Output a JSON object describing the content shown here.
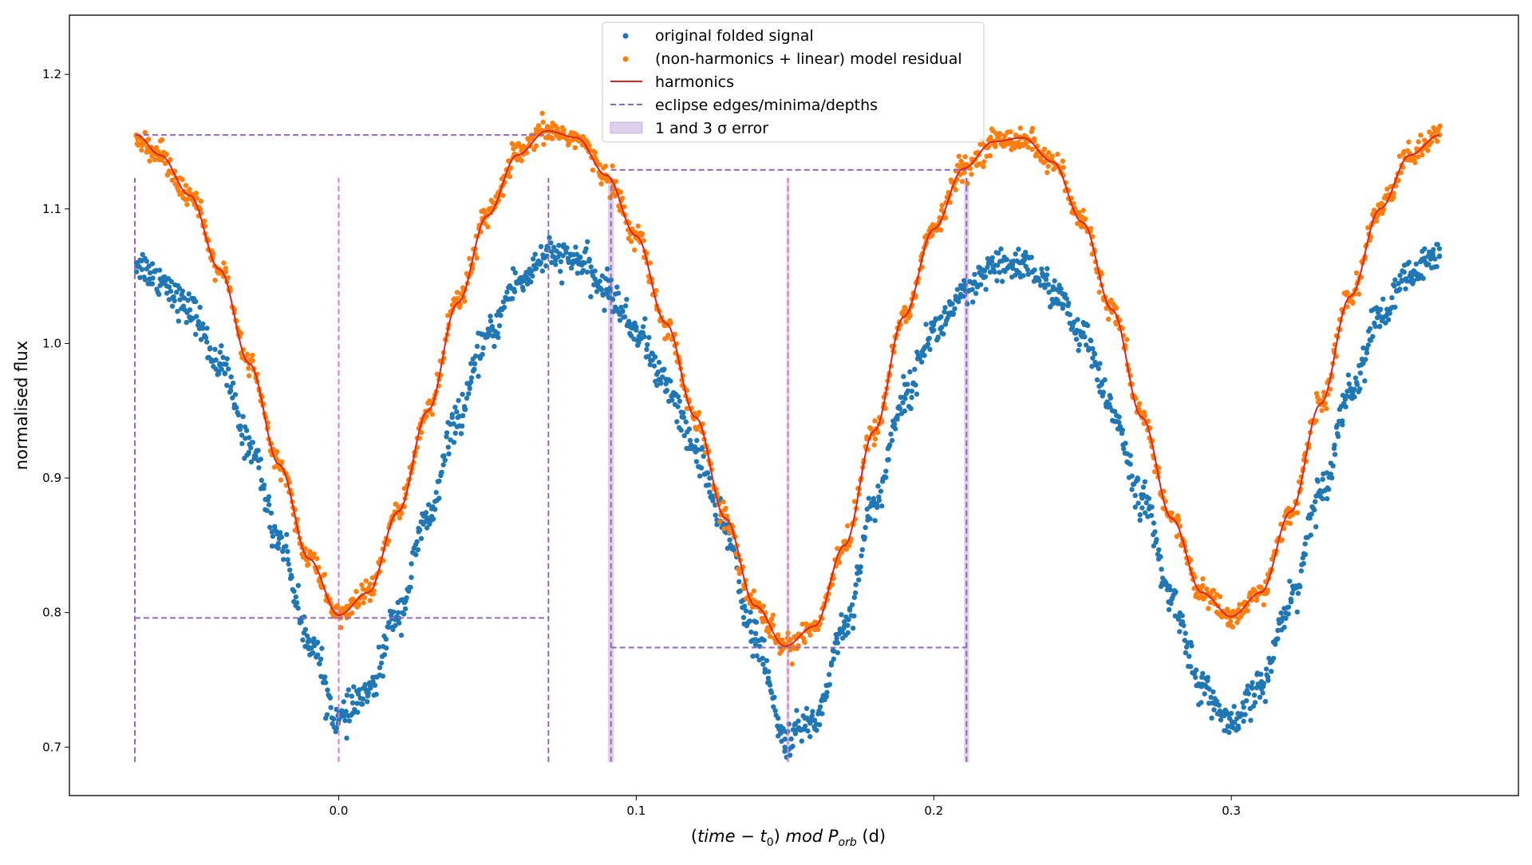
{
  "chart_data": {
    "type": "scatter",
    "title": "",
    "xlabel": "(time − t₀) mod P_orb (d)",
    "xlabel_parts": {
      "open": "(",
      "time": "time",
      "minus": " − ",
      "t": "t",
      "t_sub": "0",
      "close": ")",
      "mod": " mod ",
      "P": "P",
      "P_sub": "orb",
      "unit": " (d)"
    },
    "ylabel": "normalised flux",
    "xlim": [
      -0.0905,
      0.3965
    ],
    "ylim": [
      0.664,
      1.244
    ],
    "xticks": [
      0.0,
      0.1,
      0.2,
      0.3
    ],
    "xtick_labels": [
      "0.0",
      "0.1",
      "0.2",
      "0.3"
    ],
    "yticks": [
      0.7,
      0.8,
      0.9,
      1.0,
      1.1,
      1.2
    ],
    "ytick_labels": [
      "0.7",
      "0.8",
      "0.9",
      "1.0",
      "1.1",
      "1.2"
    ],
    "grid": false,
    "legend_position": "top-center",
    "legend": [
      {
        "label": "original folded signal",
        "kind": "dot",
        "color": "#1f77b4"
      },
      {
        "label": "(non-harmonics + linear) model residual",
        "kind": "dot",
        "color": "#ff7f0e"
      },
      {
        "label": "harmonics",
        "kind": "line",
        "color": "#d62728"
      },
      {
        "label": "eclipse edges/minima/depths",
        "kind": "dashed",
        "color": "#9467bd"
      },
      {
        "label": "1 and 3 σ error",
        "kind": "patch",
        "color": "#9467bd"
      }
    ],
    "series": [
      {
        "name": "original folded signal",
        "kind": "scatter",
        "color": "#1f77b4",
        "x": [
          -0.068,
          -0.06,
          -0.05,
          -0.04,
          -0.03,
          -0.02,
          -0.01,
          0.0,
          0.01,
          0.02,
          0.03,
          0.04,
          0.05,
          0.06,
          0.07,
          0.08,
          0.09,
          0.1,
          0.11,
          0.12,
          0.13,
          0.14,
          0.15,
          0.16,
          0.17,
          0.18,
          0.19,
          0.2,
          0.21,
          0.22,
          0.23,
          0.24,
          0.25,
          0.26,
          0.27,
          0.28,
          0.29,
          0.3,
          0.31,
          0.32,
          0.33,
          0.34,
          0.35,
          0.36,
          0.37
        ],
        "y": [
          1.06,
          1.048,
          1.025,
          0.985,
          0.925,
          0.855,
          0.78,
          0.72,
          0.74,
          0.8,
          0.87,
          0.945,
          1.005,
          1.045,
          1.065,
          1.062,
          1.04,
          1.01,
          0.97,
          0.92,
          0.86,
          0.78,
          0.706,
          0.72,
          0.79,
          0.88,
          0.96,
          1.01,
          1.035,
          1.055,
          1.06,
          1.04,
          1.005,
          0.95,
          0.885,
          0.81,
          0.745,
          0.715,
          0.745,
          0.81,
          0.89,
          0.965,
          1.02,
          1.05,
          1.065
        ]
      },
      {
        "name": "(non-harmonics + linear) model residual",
        "kind": "scatter",
        "color": "#ff7f0e",
        "x": [
          -0.068,
          -0.06,
          -0.05,
          -0.04,
          -0.03,
          -0.02,
          -0.01,
          0.0,
          0.01,
          0.02,
          0.03,
          0.04,
          0.05,
          0.06,
          0.07,
          0.08,
          0.09,
          0.1,
          0.11,
          0.12,
          0.13,
          0.14,
          0.15,
          0.16,
          0.17,
          0.18,
          0.19,
          0.2,
          0.21,
          0.22,
          0.23,
          0.24,
          0.25,
          0.26,
          0.27,
          0.28,
          0.29,
          0.3,
          0.31,
          0.32,
          0.33,
          0.34,
          0.35,
          0.36,
          0.37
        ],
        "y": [
          1.155,
          1.14,
          1.11,
          1.055,
          0.985,
          0.91,
          0.84,
          0.798,
          0.815,
          0.875,
          0.95,
          1.03,
          1.095,
          1.14,
          1.158,
          1.153,
          1.125,
          1.08,
          1.015,
          0.945,
          0.87,
          0.805,
          0.775,
          0.79,
          0.85,
          0.935,
          1.02,
          1.085,
          1.13,
          1.15,
          1.153,
          1.135,
          1.09,
          1.025,
          0.945,
          0.87,
          0.815,
          0.797,
          0.815,
          0.875,
          0.955,
          1.035,
          1.1,
          1.14,
          1.155
        ]
      },
      {
        "name": "harmonics",
        "kind": "line",
        "color": "#d62728",
        "x": [
          -0.068,
          -0.06,
          -0.05,
          -0.04,
          -0.03,
          -0.02,
          -0.01,
          0.0,
          0.01,
          0.02,
          0.03,
          0.04,
          0.05,
          0.06,
          0.07,
          0.08,
          0.09,
          0.1,
          0.11,
          0.12,
          0.13,
          0.14,
          0.15,
          0.16,
          0.17,
          0.18,
          0.19,
          0.2,
          0.21,
          0.22,
          0.23,
          0.24,
          0.25,
          0.26,
          0.27,
          0.28,
          0.29,
          0.3,
          0.31,
          0.32,
          0.33,
          0.34,
          0.35,
          0.36,
          0.37
        ],
        "y": [
          1.155,
          1.14,
          1.11,
          1.055,
          0.985,
          0.91,
          0.84,
          0.798,
          0.815,
          0.875,
          0.95,
          1.03,
          1.095,
          1.14,
          1.158,
          1.153,
          1.125,
          1.08,
          1.015,
          0.945,
          0.87,
          0.805,
          0.775,
          0.79,
          0.85,
          0.935,
          1.02,
          1.085,
          1.13,
          1.15,
          1.153,
          1.135,
          1.09,
          1.025,
          0.945,
          0.87,
          0.815,
          0.797,
          0.815,
          0.875,
          0.955,
          1.035,
          1.1,
          1.14,
          1.155
        ]
      }
    ],
    "eclipse_markers": {
      "color": "#9467bd",
      "minima_color": "#e377c2",
      "edges": [
        {
          "x": -0.0685,
          "y0": 0.689,
          "y1": 1.123
        },
        {
          "x": 0.0705,
          "y0": 0.689,
          "y1": 1.123
        },
        {
          "x": 0.0915,
          "y0": 0.689,
          "y1": 1.123
        },
        {
          "x": 0.211,
          "y0": 0.689,
          "y1": 1.123
        }
      ],
      "minima": [
        {
          "x": 0.0,
          "y0": 0.689,
          "y1": 1.123
        },
        {
          "x": 0.151,
          "y0": 0.689,
          "y1": 1.123
        }
      ],
      "depths": [
        {
          "x0": -0.0685,
          "x1": 0.0705,
          "y": 1.155
        },
        {
          "x0": -0.0685,
          "x1": 0.0705,
          "y": 0.796
        },
        {
          "x0": 0.0915,
          "x1": 0.211,
          "y": 1.129
        },
        {
          "x0": 0.0915,
          "x1": 0.211,
          "y": 0.774
        }
      ],
      "error_bands": [
        {
          "x0": 0.0905,
          "x1": 0.0925
        },
        {
          "x0": 0.2102,
          "x1": 0.2118
        },
        {
          "x0": 0.1505,
          "x1": 0.1515
        }
      ]
    }
  }
}
